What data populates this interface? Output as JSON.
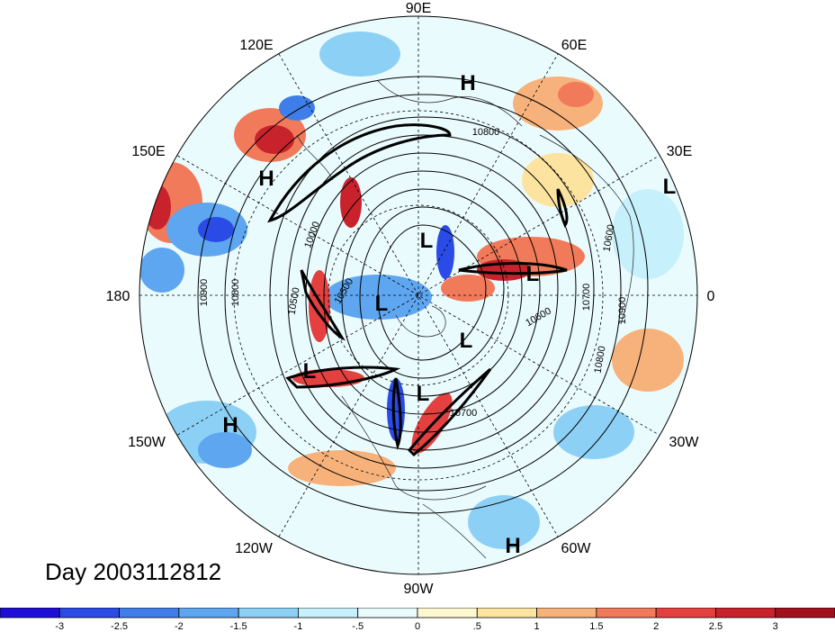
{
  "title": "Day 2003112812",
  "longitude_labels": [
    "90E",
    "60E",
    "30E",
    "0",
    "30W",
    "60W",
    "90W",
    "120W",
    "150W",
    "180",
    "150E",
    "120E"
  ],
  "pressure_systems": [
    "H",
    "L",
    "L",
    "L",
    "L",
    "L",
    "L",
    "L",
    "H",
    "H",
    "H"
  ],
  "contour_labels": [
    "10800",
    "10900",
    "10800",
    "10500",
    "10500",
    "10600",
    "10700",
    "10900",
    "10800",
    "10700",
    "10600",
    "10000"
  ],
  "colorbar": {
    "ticks": [
      "-3",
      "-2.5",
      "-2",
      "-1.5",
      "-1",
      "-.5",
      "0",
      ".5",
      "1",
      "1.5",
      "2",
      "2.5",
      "3"
    ],
    "colors": [
      "#1e0fd6",
      "#2a4be6",
      "#3f7ee8",
      "#5ea6f0",
      "#8cd0f5",
      "#c6f0fb",
      "#e9fbfd",
      "#fdf8cf",
      "#fce3a0",
      "#f7b27b",
      "#f07a5a",
      "#e44040",
      "#c8232d",
      "#a3101d"
    ]
  }
}
